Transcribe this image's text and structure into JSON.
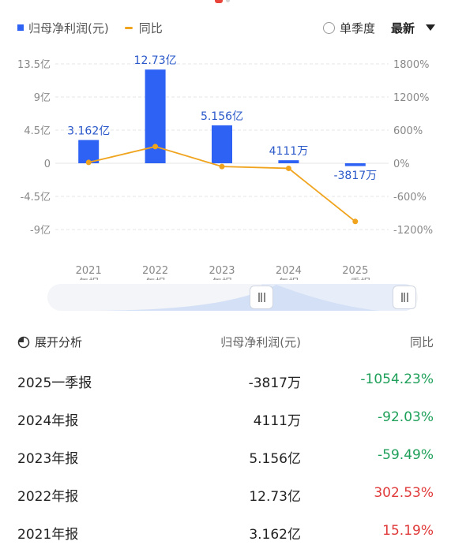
{
  "legend": {
    "bar_label": "归母净利润(元)",
    "line_label": "同比"
  },
  "controls": {
    "quarter_radio_label": "单季度",
    "range_dropdown_label": "最新"
  },
  "colors": {
    "bar": "#2e62f4",
    "line": "#f0a41e",
    "negative": "#1fa05a",
    "positive": "#e03a3a"
  },
  "chart_data": {
    "type": "bar",
    "categories": [
      [
        "2021",
        "年报"
      ],
      [
        "2022",
        "年报"
      ],
      [
        "2023",
        "年报"
      ],
      [
        "2024",
        "年报"
      ],
      [
        "2025",
        "一季报"
      ]
    ],
    "series": [
      {
        "name": "归母净利润(元)",
        "type": "bar",
        "axis": "left",
        "values": [
          3.162,
          12.73,
          5.156,
          0.4111,
          -0.3817
        ],
        "labels": [
          "3.162亿",
          "12.73亿",
          "5.156亿",
          "4111万",
          "-3817万"
        ]
      },
      {
        "name": "同比",
        "type": "line",
        "axis": "right",
        "values": [
          15.19,
          302.53,
          -59.49,
          -92.03,
          -1054.23
        ]
      }
    ],
    "left_axis": {
      "ylim": [
        -13.5,
        13.5
      ],
      "ticks": [
        13.5,
        9,
        4.5,
        0,
        -4.5,
        -9
      ],
      "tick_labels": [
        "13.5亿",
        "9亿",
        "4.5亿",
        "0",
        "-4.5亿",
        "-9亿"
      ]
    },
    "right_axis": {
      "ylim": [
        -1800,
        1800
      ],
      "ticks": [
        1800,
        1200,
        600,
        0,
        -600,
        -1200
      ],
      "tick_labels": [
        "1800%",
        "1200%",
        "600%",
        "0%",
        "-600%",
        "-1200%"
      ]
    }
  },
  "table": {
    "expand_label": "展开分析",
    "value_header": "归母净利润(元)",
    "yoy_header": "同比",
    "rows": [
      {
        "period": "2025一季报",
        "value": "-3817万",
        "yoy": "-1054.23%",
        "trend": "neg"
      },
      {
        "period": "2024年报",
        "value": "4111万",
        "yoy": "-92.03%",
        "trend": "neg"
      },
      {
        "period": "2023年报",
        "value": "5.156亿",
        "yoy": "-59.49%",
        "trend": "neg"
      },
      {
        "period": "2022年报",
        "value": "12.73亿",
        "yoy": "302.53%",
        "trend": "pos"
      },
      {
        "period": "2021年报",
        "value": "3.162亿",
        "yoy": "15.19%",
        "trend": "pos"
      }
    ]
  }
}
